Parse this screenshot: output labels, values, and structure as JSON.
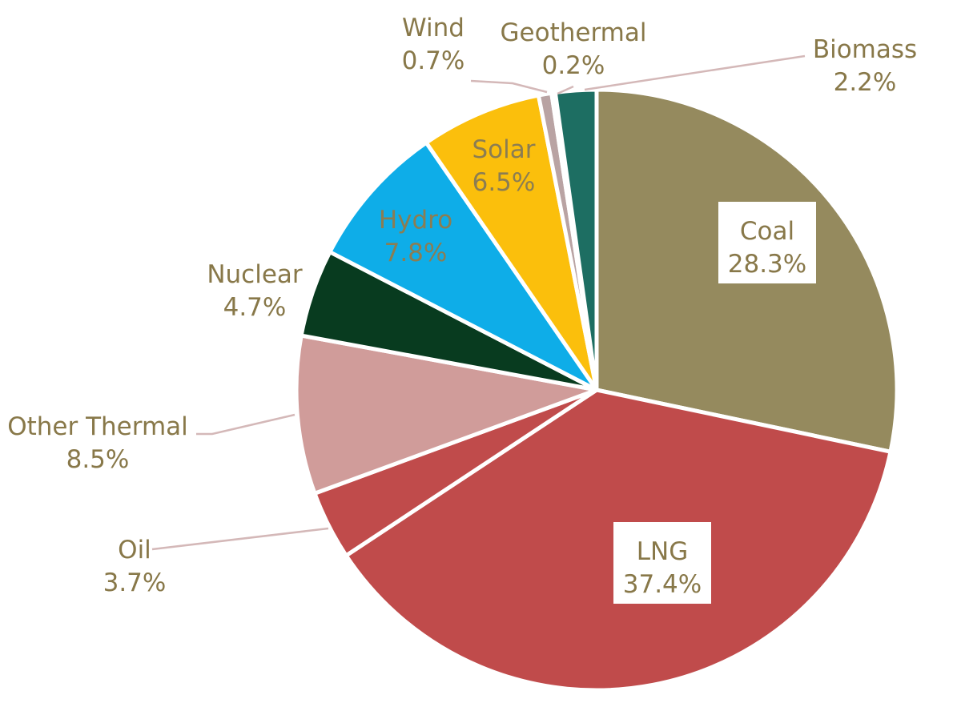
{
  "chart_data": {
    "type": "pie",
    "start": "12 o'clock",
    "direction": "clockwise",
    "slices": [
      {
        "label": "Coal",
        "value": 28.3,
        "value_label": "28.3%",
        "color": "#958A5E"
      },
      {
        "label": "LNG",
        "value": 37.4,
        "value_label": "37.4%",
        "color": "#C04B4B"
      },
      {
        "label": "Oil",
        "value": 3.7,
        "value_label": "3.7%",
        "color": "#C04B4B"
      },
      {
        "label": "Other Thermal",
        "value": 8.5,
        "value_label": "8.5%",
        "color": "#D09C9A"
      },
      {
        "label": "Nuclear",
        "value": 4.7,
        "value_label": "4.7%",
        "color": "#083B1F"
      },
      {
        "label": "Hydro",
        "value": 7.8,
        "value_label": "7.8%",
        "color": "#0EADE8"
      },
      {
        "label": "Solar",
        "value": 6.5,
        "value_label": "6.5%",
        "color": "#FBBF0C"
      },
      {
        "label": "Wind",
        "value": 0.7,
        "value_label": "0.7%",
        "color": "#B9A3A3"
      },
      {
        "label": "Geothermal",
        "value": 0.2,
        "value_label": "0.2%",
        "color": "#7A2E2E"
      },
      {
        "label": "Biomass",
        "value": 2.2,
        "value_label": "2.2%",
        "color": "#1D6E62"
      }
    ],
    "label_color": "#887849",
    "inside_label_color": "#8B7D52"
  }
}
